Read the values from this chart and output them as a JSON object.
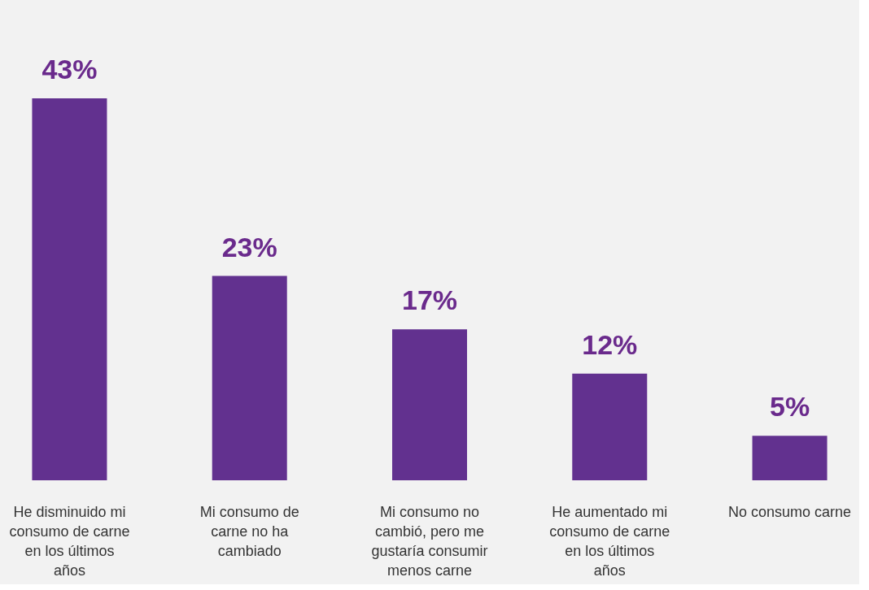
{
  "chart_data": {
    "type": "bar",
    "categories": [
      "He disminuido mi consumo de carne en los últimos años",
      "Mi consumo de carne no ha cambiado",
      "Mi consumo no cambió, pero me gustaría consumir menos carne",
      "He aumentado mi consumo de carne en los últimos años",
      "No consumo carne"
    ],
    "values": [
      43,
      23,
      17,
      12,
      5
    ],
    "value_labels": [
      "43%",
      "23%",
      "17%",
      "12%",
      "5%"
    ],
    "color": "#62318f",
    "grid": false
  }
}
